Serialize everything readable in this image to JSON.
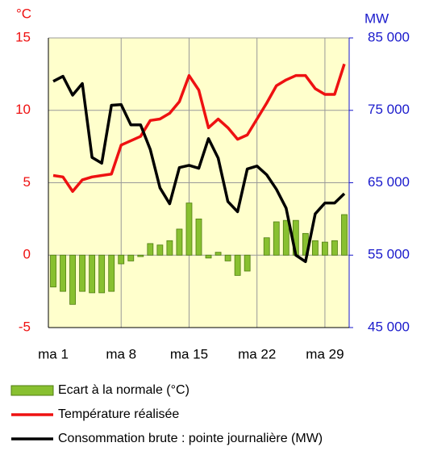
{
  "chart_data": {
    "type": "bar",
    "y_unit": "°C",
    "y2_unit": "MW",
    "categories": [
      "ma 1",
      null,
      null,
      null,
      null,
      null,
      null,
      "ma 8",
      null,
      null,
      null,
      null,
      null,
      null,
      "ma 15",
      null,
      null,
      null,
      null,
      null,
      null,
      "ma 22",
      null,
      null,
      null,
      null,
      null,
      null,
      "ma 29",
      null,
      null
    ],
    "ylim": [
      -5,
      15
    ],
    "yticks": [
      -5,
      0,
      5,
      10,
      15
    ],
    "y2lim": [
      45000,
      85000
    ],
    "y2ticks": [
      {
        "value": 45000,
        "label": "45 000"
      },
      {
        "value": 55000,
        "label": "55 000"
      },
      {
        "value": 65000,
        "label": "65 000"
      },
      {
        "value": 75000,
        "label": "75 000"
      },
      {
        "value": 85000,
        "label": "85 000"
      }
    ],
    "grid": true,
    "series": [
      {
        "name": "Ecart à la normale (°C)",
        "type": "bar",
        "color": "#88c030",
        "values": [
          -2.2,
          -2.5,
          -3.4,
          -2.5,
          -2.6,
          -2.6,
          -2.5,
          -0.6,
          -0.4,
          -0.1,
          0.8,
          0.7,
          1.0,
          1.8,
          3.6,
          2.5,
          -0.2,
          0.2,
          -0.4,
          -1.4,
          -1.1,
          0.0,
          1.2,
          2.3,
          2.4,
          2.4,
          1.5,
          1.0,
          0.9,
          1.0,
          2.8
        ]
      },
      {
        "name": "Température réalisée",
        "type": "line",
        "color": "#ee1111",
        "values": [
          5.5,
          5.4,
          4.4,
          5.2,
          5.4,
          5.5,
          5.6,
          7.6,
          7.9,
          8.2,
          9.3,
          9.4,
          9.8,
          10.6,
          12.4,
          11.4,
          8.8,
          9.4,
          8.8,
          8.0,
          8.3,
          9.4,
          10.5,
          11.7,
          12.1,
          12.4,
          12.4,
          11.5,
          11.1,
          11.1,
          13.2
        ]
      },
      {
        "name": "Consommation brute : pointe journalière (MW)",
        "type": "line",
        "axis": "y2",
        "color": "#000000",
        "values": [
          79000,
          79700,
          77100,
          78700,
          68500,
          67700,
          75700,
          75800,
          73000,
          73000,
          69600,
          64300,
          62100,
          67100,
          67400,
          67000,
          71100,
          68400,
          62400,
          61000,
          66900,
          67300,
          66100,
          64100,
          61500,
          55000,
          54100,
          60700,
          62200,
          62200,
          63500
        ]
      }
    ]
  }
}
